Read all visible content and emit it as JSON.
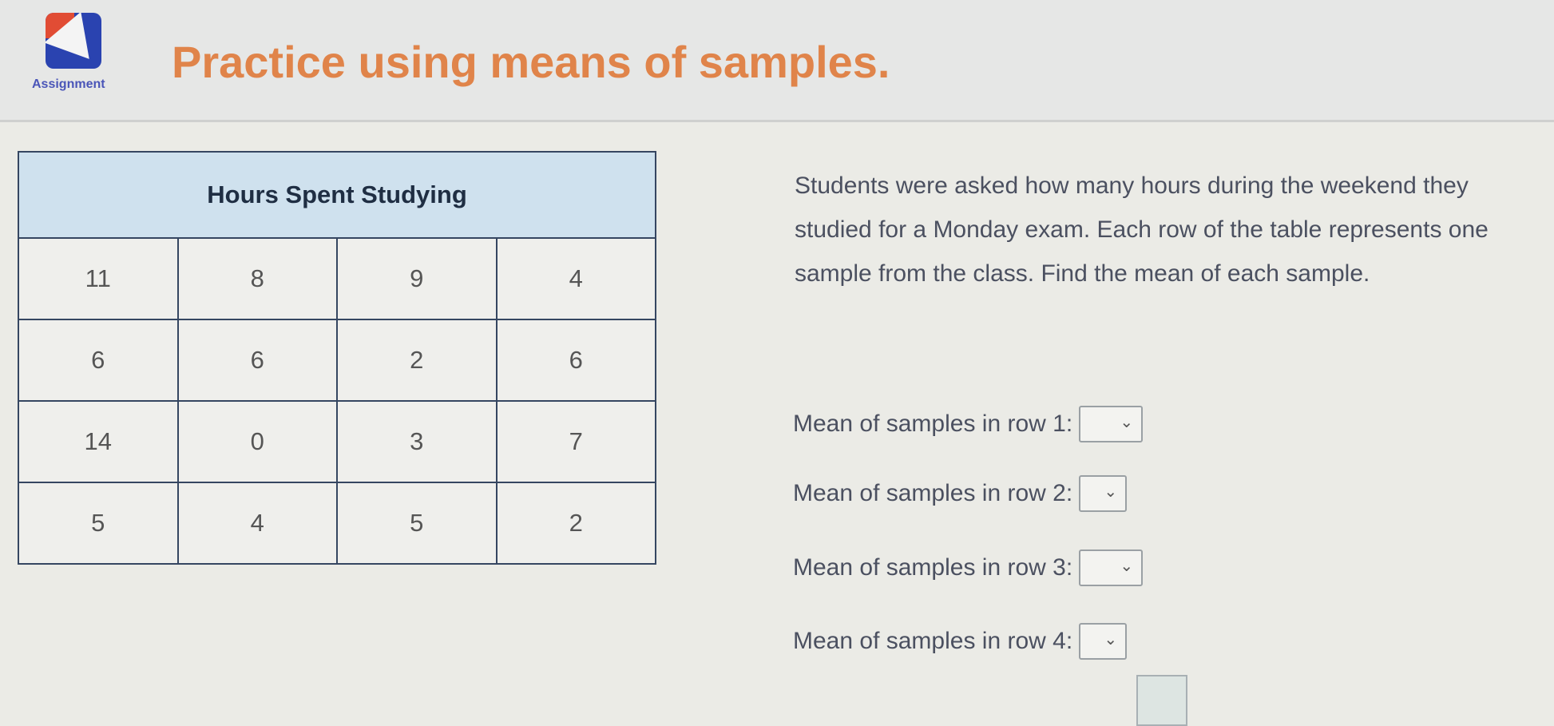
{
  "header": {
    "logo_label": "Assignment",
    "title": "Practice using means of samples."
  },
  "table": {
    "title": "Hours Spent Studying",
    "rows": [
      [
        "11",
        "8",
        "9",
        "4"
      ],
      [
        "6",
        "6",
        "2",
        "6"
      ],
      [
        "14",
        "0",
        "3",
        "7"
      ],
      [
        "5",
        "4",
        "5",
        "2"
      ]
    ]
  },
  "prompt": "Students were asked how many hours during the weekend they studied for a Monday exam. Each row of the table represents one sample from the class. Find the mean of each sample.",
  "questions": [
    {
      "label": "Mean of samples in row 1:",
      "value": ""
    },
    {
      "label": "Mean of samples in row 2:",
      "value": ""
    },
    {
      "label": "Mean of samples in row 3:",
      "value": ""
    },
    {
      "label": "Mean of samples in row 4:",
      "value": ""
    }
  ],
  "icons": {
    "dropdown": "chevron-down-icon",
    "logo": "assignment-icon"
  }
}
